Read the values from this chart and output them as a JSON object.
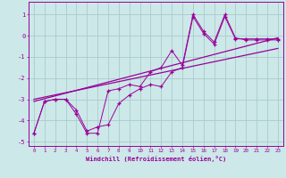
{
  "xlabel": "Windchill (Refroidissement éolien,°C)",
  "bg_color": "#cce8e8",
  "line_color": "#990099",
  "grid_color": "#aacccc",
  "xlim": [
    -0.5,
    23.5
  ],
  "ylim": [
    -5.2,
    1.6
  ],
  "yticks": [
    -5,
    -4,
    -3,
    -2,
    -1,
    0,
    1
  ],
  "xticks": [
    0,
    1,
    2,
    3,
    4,
    5,
    6,
    7,
    8,
    9,
    10,
    11,
    12,
    13,
    14,
    15,
    16,
    17,
    18,
    19,
    20,
    21,
    22,
    23
  ],
  "series1_x": [
    0,
    1,
    2,
    3,
    4,
    5,
    6,
    7,
    8,
    9,
    10,
    11,
    12,
    13,
    14,
    15,
    16,
    17,
    18,
    19,
    20,
    21,
    22,
    23
  ],
  "series1_y": [
    -4.6,
    -3.1,
    -3.0,
    -3.0,
    -3.7,
    -4.6,
    -4.6,
    -2.6,
    -2.5,
    -2.3,
    -2.4,
    -1.7,
    -1.5,
    -0.7,
    -1.4,
    1.0,
    0.2,
    -0.3,
    1.0,
    -0.1,
    -0.2,
    -0.2,
    -0.2,
    -0.2
  ],
  "series2_x": [
    0,
    1,
    2,
    3,
    4,
    5,
    6,
    7,
    8,
    9,
    10,
    11,
    12,
    13,
    14,
    15,
    16,
    17,
    18,
    19,
    20,
    21,
    22,
    23
  ],
  "series2_y": [
    -4.6,
    -3.1,
    -3.0,
    -3.0,
    -3.5,
    -4.5,
    -4.3,
    -4.2,
    -3.2,
    -2.8,
    -2.5,
    -2.3,
    -2.4,
    -1.7,
    -1.5,
    0.9,
    0.1,
    -0.4,
    0.9,
    -0.15,
    -0.15,
    -0.15,
    -0.15,
    -0.15
  ],
  "line1_x": [
    0,
    23
  ],
  "line1_y": [
    -3.1,
    -0.1
  ],
  "line2_x": [
    0,
    23
  ],
  "line2_y": [
    -3.0,
    -0.6
  ]
}
